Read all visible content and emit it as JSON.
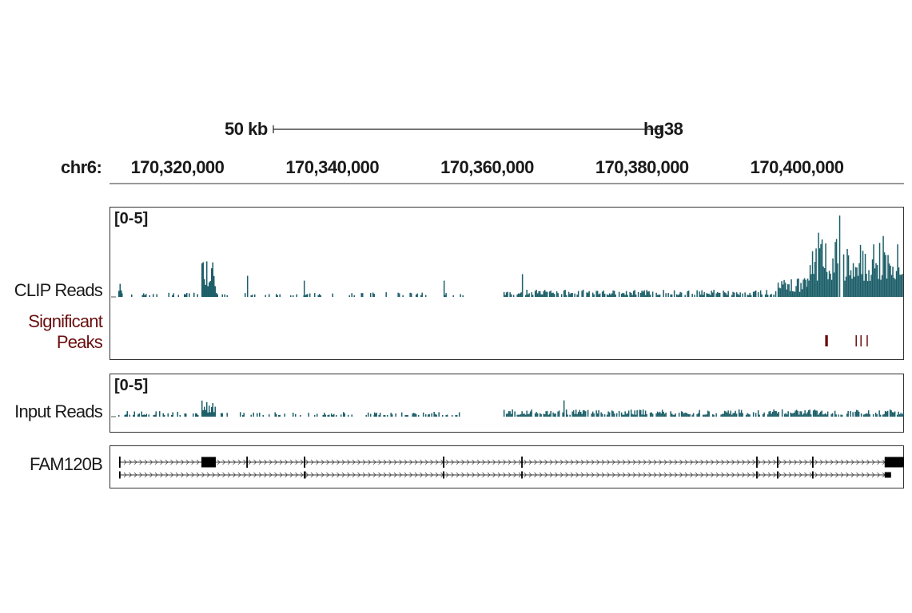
{
  "chart_data": {
    "type": "genome-browser",
    "assembly": "hg38",
    "chromosome": "chr6:",
    "scale_bar": {
      "label": "50 kb",
      "length_bp": 50000
    },
    "view_range_bp": [
      170311330,
      170413830
    ],
    "ticks": [
      {
        "pos": 170320000,
        "label": "170,320,000"
      },
      {
        "pos": 170340000,
        "label": "170,340,000"
      },
      {
        "pos": 170360000,
        "label": "170,360,000"
      },
      {
        "pos": 170380000,
        "label": "170,380,000"
      },
      {
        "pos": 170400000,
        "label": "170,400,000"
      }
    ],
    "tracks": {
      "clip": {
        "label": "CLIP Reads",
        "range_label": "[0-5]",
        "ylim": [
          0,
          5
        ],
        "color": "#1b5e68",
        "segments": [
          [
            170312362,
            170312775,
            1.0,
            1
          ],
          [
            170312775,
            170322888,
            0.3,
            0.25
          ],
          [
            170323095,
            170324952,
            2.2,
            1
          ],
          [
            170324952,
            170344000,
            0.25,
            0.2
          ],
          [
            170344560,
            170356944,
            0.3,
            0.2
          ],
          [
            170362104,
            170397192,
            0.45,
            0.7
          ],
          [
            170397192,
            170401320,
            1.2,
            0.9
          ],
          [
            170401320,
            170405300,
            4.0,
            1
          ],
          [
            170405964,
            170413704,
            3.8,
            1
          ]
        ],
        "spikes": [
          [
            170328977,
            1.3
          ],
          [
            170336304,
            1.0
          ],
          [
            170354364,
            1.0
          ],
          [
            170364478,
            1.4
          ],
          [
            170405448,
            5.0
          ]
        ]
      },
      "peaks": {
        "label": "Significant Peaks",
        "label_lines": [
          "Significant",
          "Peaks"
        ],
        "color": "#6b0e0e",
        "intervals": [
          [
            170403650,
            170404000
          ],
          [
            170407580,
            170407700
          ],
          [
            170408200,
            170408320
          ],
          [
            170409000,
            170409120
          ]
        ]
      },
      "input": {
        "label": "Input Reads",
        "range_label": "[0-5]",
        "ylim": [
          0,
          5
        ],
        "color": "#1b5e68",
        "segments": [
          [
            170312362,
            170322888,
            0.35,
            0.5
          ],
          [
            170323095,
            170324952,
            1.0,
            1
          ],
          [
            170324952,
            170346000,
            0.3,
            0.3
          ],
          [
            170344560,
            170356944,
            0.3,
            0.4
          ],
          [
            170362104,
            170413704,
            0.45,
            0.75
          ]
        ],
        "spikes": [
          [
            170369844,
            1.0
          ]
        ]
      },
      "gene": {
        "label": "FAM120B",
        "strand": "+",
        "transcripts": [
          {
            "start": 170312465,
            "end": 170413807,
            "exons": [
              [
                170312465,
                170312600
              ],
              [
                170323095,
                170324952
              ],
              [
                170328900,
                170329050
              ],
              [
                170336330,
                170336480
              ],
              [
                170354290,
                170354440
              ],
              [
                170364400,
                170364550
              ],
              [
                170394740,
                170394890
              ],
              [
                170397420,
                170397570
              ],
              [
                170401960,
                170402110
              ],
              [
                170411330,
                170413807
              ]
            ]
          },
          {
            "start": 170312465,
            "end": 170412155,
            "exons": [
              [
                170312465,
                170312600
              ],
              [
                170336330,
                170336560
              ],
              [
                170354290,
                170354440
              ],
              [
                170364400,
                170364550
              ],
              [
                170394740,
                170394890
              ],
              [
                170397420,
                170397570
              ],
              [
                170401960,
                170402110
              ],
              [
                170411330,
                170412155
              ]
            ]
          }
        ]
      }
    }
  }
}
